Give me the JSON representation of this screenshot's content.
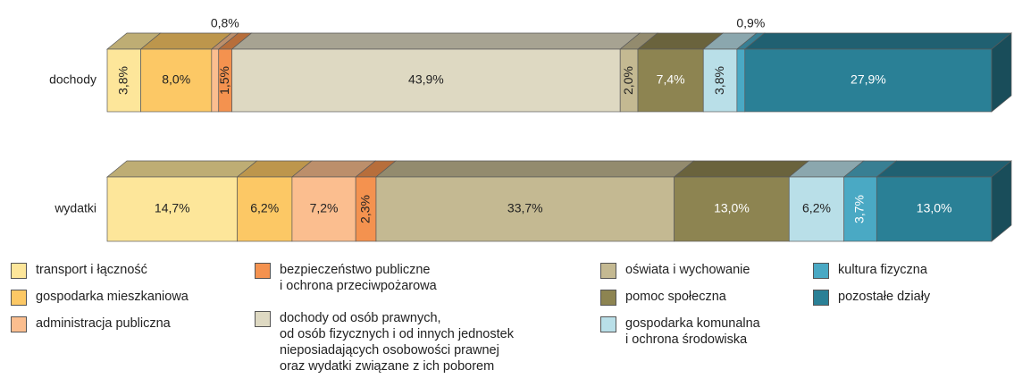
{
  "chart_data": {
    "type": "stacked_bar_3d",
    "categories": [
      "dochody",
      "wydatki"
    ],
    "xlim": [
      0,
      100
    ],
    "series": [
      {
        "name": "transport i łączność",
        "color": "#fde69a",
        "values": [
          3.8,
          14.7
        ],
        "value_labels": [
          "3,8%",
          "14,7%"
        ]
      },
      {
        "name": "gospodarka mieszkaniowa",
        "color": "#fcc865",
        "values": [
          8.0,
          6.2
        ],
        "value_labels": [
          "8,0%",
          "6,2%"
        ]
      },
      {
        "name": "administracja publiczna",
        "color": "#fbbe8f",
        "values": [
          0.8,
          7.2
        ],
        "value_labels": [
          "0,8%",
          "7,2%"
        ]
      },
      {
        "name": "bezpieczeństwo publiczne\ni ochrona przeciwpożarowa",
        "color": "#f4924f",
        "values": [
          1.5,
          2.3
        ],
        "value_labels": [
          "1,5%",
          "2,3%"
        ]
      },
      {
        "name": "dochody od osób prawnych,\nod osób fizycznych i od innych jednostek\nnieposiadających osobowości prawnej\noraz wydatki związane z ich poborem",
        "color": "#ded9c2",
        "values": [
          43.9,
          null
        ],
        "value_labels": [
          "43,9%",
          null
        ]
      },
      {
        "name": "oświata i wychowanie",
        "color": "#c4b992",
        "values": [
          2.0,
          33.7
        ],
        "value_labels": [
          "2,0%",
          "33,7%"
        ]
      },
      {
        "name": "pomoc społeczna",
        "color": "#8d8451",
        "values": [
          7.4,
          13.0
        ],
        "value_labels": [
          "7,4%",
          "13,0%"
        ]
      },
      {
        "name": "gospodarka komunalna\ni ochrona środowiska",
        "color": "#b9dfe8",
        "values": [
          3.8,
          6.2
        ],
        "value_labels": [
          "3,8%",
          "6,2%"
        ]
      },
      {
        "name": "kultura fizyczna",
        "color": "#4aa9c4",
        "values": [
          0.9,
          3.7
        ],
        "value_labels": [
          "0,9%",
          "3,7%"
        ]
      },
      {
        "name": "pozostałe działy",
        "color": "#2a8096",
        "values": [
          27.9,
          13.0
        ],
        "value_labels": [
          "27,9%",
          "13,0%"
        ]
      }
    ]
  }
}
